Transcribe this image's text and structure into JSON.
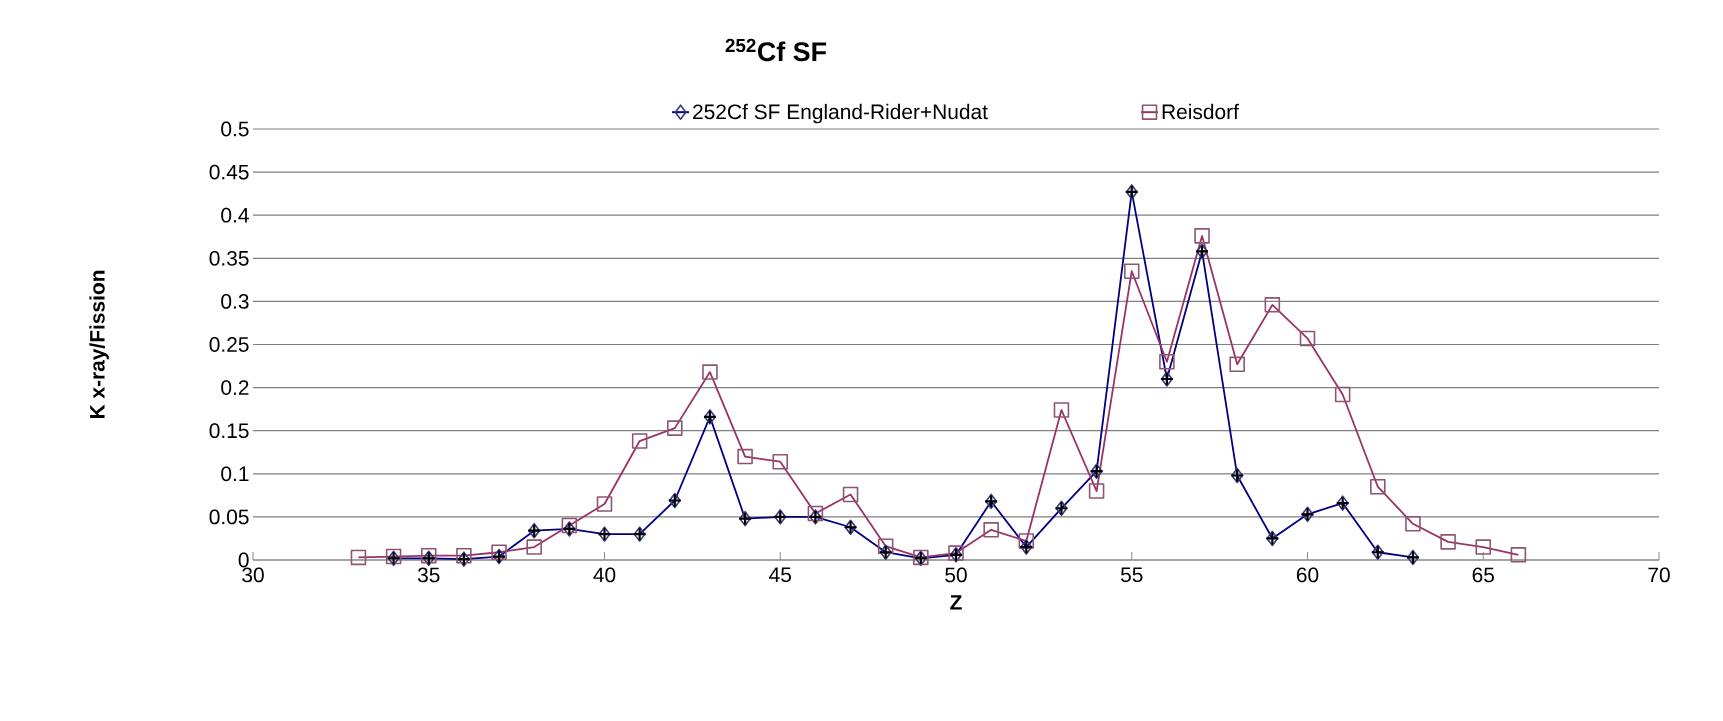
{
  "chart_data": {
    "type": "line",
    "title": "$^{252}$Cf  SF",
    "xlabel": "Z",
    "ylabel": "K x-ray/Fission",
    "xlim": [
      30,
      70
    ],
    "xticks": [
      30,
      35,
      40,
      45,
      50,
      55,
      60,
      65,
      70
    ],
    "ylim": [
      0,
      0.5
    ],
    "yticks": [
      0,
      0.05,
      0.1,
      0.15,
      0.2,
      0.25,
      0.3,
      0.35,
      0.4,
      0.45,
      0.5
    ],
    "grid": "y",
    "legend": "top",
    "line_style": "solid",
    "series": [
      {
        "name": "252Cf SF England-Rider+Nudat",
        "marker": "diamond",
        "color": "#000080",
        "x": [
          34,
          35,
          36,
          37,
          38,
          39,
          40,
          41,
          42,
          43,
          44,
          45,
          46,
          47,
          48,
          49,
          50,
          51,
          52,
          53,
          54,
          55,
          56,
          57,
          58,
          59,
          60,
          61,
          62,
          63
        ],
        "values": [
          0.002,
          0.002,
          0.001,
          0.004,
          0.034,
          0.036,
          0.03,
          0.03,
          0.069,
          0.166,
          0.048,
          0.05,
          0.05,
          0.038,
          0.009,
          0.002,
          0.006,
          0.068,
          0.015,
          0.06,
          0.103,
          0.427,
          0.21,
          0.358,
          0.098,
          0.025,
          0.053,
          0.066,
          0.009,
          0.003
        ]
      },
      {
        "name": "Reisdorf",
        "marker": "square",
        "color": "#993366",
        "x": [
          33,
          34,
          35,
          36,
          37,
          38,
          39,
          40,
          41,
          42,
          43,
          44,
          45,
          46,
          47,
          48,
          49,
          50,
          51,
          52,
          53,
          54,
          55,
          56,
          57,
          58,
          59,
          60,
          61,
          62,
          63,
          64,
          65,
          66
        ],
        "values": [
          0.003,
          0.004,
          0.005,
          0.005,
          0.009,
          0.015,
          0.04,
          0.065,
          0.138,
          0.153,
          0.218,
          0.12,
          0.114,
          0.054,
          0.076,
          0.016,
          0.003,
          0.008,
          0.035,
          0.022,
          0.174,
          0.08,
          0.335,
          0.23,
          0.376,
          0.227,
          0.296,
          0.257,
          0.192,
          0.085,
          0.042,
          0.021,
          0.015,
          0.006
        ]
      },
      {
        "type": "scatter",
        "marker": "cross",
        "color": "#000000",
        "x": [
          34,
          35,
          36,
          37,
          38,
          39,
          40,
          41,
          42,
          43,
          44,
          45,
          46,
          47,
          48,
          49,
          50,
          51,
          52,
          53,
          54,
          55,
          56,
          57,
          58,
          59,
          60,
          61,
          62,
          63
        ],
        "values": [
          0.002,
          0.002,
          0.001,
          0.004,
          0.034,
          0.036,
          0.03,
          0.03,
          0.069,
          0.166,
          0.048,
          0.05,
          0.05,
          0.038,
          0.009,
          0.002,
          0.006,
          0.068,
          0.015,
          0.06,
          0.103,
          0.427,
          0.21,
          0.358,
          0.098,
          0.025,
          0.053,
          0.066,
          0.009,
          0.003
        ]
      }
    ]
  }
}
